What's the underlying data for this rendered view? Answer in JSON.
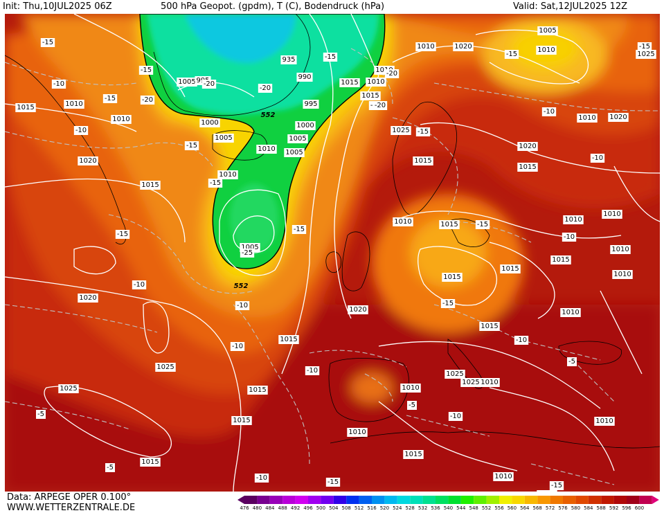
{
  "header": {
    "init": "Init: Thu,10JUL2025 06Z",
    "title": "500 hPa Geopot. (gpdm), T (C), Bodendruck (hPa)",
    "valid": "Valid: Sat,12JUL2025 12Z"
  },
  "footer": {
    "source_line": "Data: ARPEGE OPER 0.100°",
    "website": "WWW.WETTERZENTRALE.DE"
  },
  "legend": {
    "values": [
      "476",
      "480",
      "484",
      "488",
      "492",
      "496",
      "500",
      "504",
      "508",
      "512",
      "516",
      "520",
      "524",
      "528",
      "532",
      "536",
      "540",
      "544",
      "548",
      "552",
      "556",
      "560",
      "564",
      "568",
      "572",
      "576",
      "580",
      "584",
      "588",
      "592",
      "596",
      "600"
    ],
    "colors": [
      "#5a0060",
      "#780090",
      "#9800b8",
      "#b800d8",
      "#d000f0",
      "#a000f0",
      "#7000f0",
      "#3000e8",
      "#0030f0",
      "#0060f0",
      "#0090f0",
      "#00b8f0",
      "#00d8e0",
      "#00e0b8",
      "#00e090",
      "#00e060",
      "#00e030",
      "#20f000",
      "#60f000",
      "#a0f000",
      "#f0f000",
      "#f8d800",
      "#f8b800",
      "#f89800",
      "#f07800",
      "#e86000",
      "#e04800",
      "#d03000",
      "#c01800",
      "#b00808",
      "#a00018",
      "#c00050"
    ],
    "arrow_color": "#e0007a"
  },
  "map": {
    "isobar_labels": [
      "1005",
      "1010",
      "1010",
      "1020",
      "1025",
      "1015",
      "1010",
      "1010",
      "1005",
      "1015",
      "1015",
      "1010",
      "1010",
      "1020",
      "1015",
      "1015",
      "1020",
      "1025",
      "1015",
      "935",
      "990",
      "995",
      "995",
      "1000",
      "1005",
      "1005",
      "1010",
      "1010",
      "1005",
      "1000",
      "1005",
      "1010",
      "1010",
      "1020",
      "1015",
      "1020",
      "1025",
      "1025",
      "1015",
      "1010",
      "1015",
      "1015",
      "1010",
      "1015",
      "1010",
      "1005",
      "1010",
      "1015",
      "1015",
      "1010",
      "1015",
      "1015",
      "1020",
      "1025",
      "1010",
      "1015",
      "1010",
      "1010",
      "1010",
      "1010",
      "1010",
      "1025"
    ],
    "temp_labels": [
      "-15",
      "-10",
      "-15",
      "-10",
      "-15",
      "-20",
      "-20",
      "-20",
      "-15",
      "-20",
      "-20",
      "-15",
      "-15",
      "-15",
      "-10",
      "-15",
      "-10",
      "-20",
      "-15",
      "-25",
      "-15",
      "-15",
      "-15",
      "-15",
      "-10",
      "-10",
      "-10",
      "-10",
      "-5",
      "-10",
      "-5",
      "-5",
      "-10",
      "-5",
      "-10",
      "-15",
      "-15",
      "-10"
    ],
    "geopotential_labels": [
      "552",
      "552"
    ]
  }
}
